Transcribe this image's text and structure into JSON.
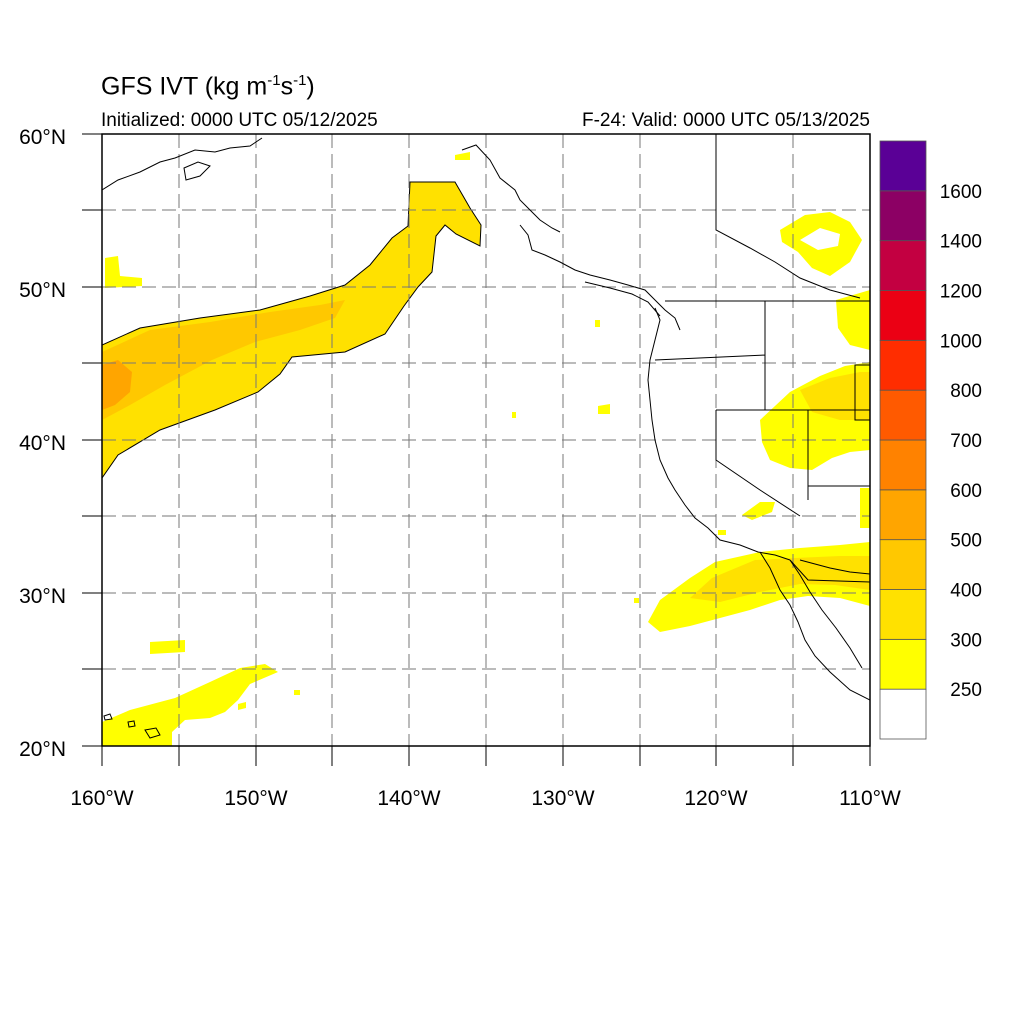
{
  "title": {
    "main": "GFS IVT (kg m",
    "sup1": "-1",
    "mid": "s",
    "sup2": "-1",
    "close": ")"
  },
  "initialized_text": "Initialized: 0000 UTC 05/12/2025",
  "valid_text": "F-24: Valid: 0000 UTC 05/13/2025",
  "lat_labels": [
    "20°N",
    "30°N",
    "40°N",
    "50°N",
    "60°N"
  ],
  "lon_labels": [
    "160°W",
    "150°W",
    "140°W",
    "130°W",
    "120°W",
    "110°W"
  ],
  "colorbar": {
    "levels": [
      "250",
      "300",
      "400",
      "500",
      "600",
      "700",
      "800",
      "1000",
      "1200",
      "1400",
      "1600"
    ],
    "colors": [
      "#ffffff",
      "#ffff00",
      "#ffe100",
      "#ffc800",
      "#ffa500",
      "#ff8200",
      "#ff5a00",
      "#ff2d00",
      "#eb0014",
      "#c30041",
      "#8c0064",
      "#5a0096"
    ]
  }
}
